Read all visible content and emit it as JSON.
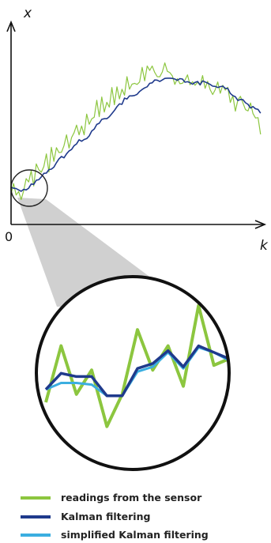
{
  "chart_data": {
    "type": "line",
    "title": "",
    "xlabel": "k",
    "ylabel": "x",
    "origin_label": "0",
    "xlim": [
      0,
      100
    ],
    "ylim": [
      0,
      100
    ],
    "grid": false,
    "legend_placement": "bottom",
    "x": [
      0,
      1,
      2,
      3,
      4,
      5,
      6,
      7,
      8,
      9,
      10,
      11,
      12,
      13,
      14,
      15,
      16,
      17,
      18,
      19,
      20,
      21,
      22,
      23,
      24,
      25,
      26,
      27,
      28,
      29,
      30,
      31,
      32,
      33,
      34,
      35,
      36,
      37,
      38,
      39,
      40,
      41,
      42,
      43,
      44,
      45,
      46,
      47,
      48,
      49,
      50,
      51,
      52,
      53,
      54,
      55,
      56,
      57,
      58,
      59,
      60,
      61,
      62,
      63,
      64,
      65,
      66,
      67,
      68,
      69,
      70,
      71,
      72,
      73,
      74,
      75,
      76,
      77,
      78,
      79,
      80,
      81,
      82,
      83,
      84,
      85,
      86,
      87,
      88,
      89,
      90,
      91,
      92,
      93,
      94,
      95,
      96,
      97,
      98,
      99
    ],
    "series": [
      {
        "name": "readings from the sensor",
        "color": "#8CC63F",
        "values": [
          13.7,
          18.5,
          13.3,
          14.9,
          11.3,
          15.3,
          20.7,
          19.2,
          24.3,
          17.4,
          27.4,
          24.7,
          23.6,
          26.2,
          31.9,
          23.7,
          34.9,
          28.5,
          34.7,
          32.5,
          32.6,
          35.6,
          40.5,
          34.5,
          39.3,
          41.5,
          44.9,
          40.5,
          44.5,
          40.5,
          49.9,
          45.3,
          47.7,
          48.5,
          56.1,
          48.7,
          57.6,
          50.8,
          55.2,
          53.0,
          61.9,
          54.1,
          62.2,
          56.7,
          61.1,
          58.4,
          66.8,
          61.1,
          63.4,
          63.8,
          63.3,
          64.4,
          71.0,
          64.9,
          71.6,
          69.6,
          71.6,
          68.7,
          66.8,
          66.7,
          68.9,
          73.0,
          69.2,
          68.6,
          67.1,
          63.3,
          65.9,
          63.6,
          63.8,
          65.2,
          67.6,
          63.1,
          64.5,
          62.9,
          64.3,
          62.9,
          67.3,
          61.5,
          64.7,
          60.9,
          58.7,
          60.9,
          64.4,
          59.3,
          62.9,
          60.7,
          62.0,
          55.1,
          58.1,
          51.2,
          56.3,
          57.9,
          54.9,
          51.9,
          51.3,
          54.9,
          50.1,
          48.1,
          48.3,
          40.7
        ]
      },
      {
        "name": "Kalman filtering",
        "color": "#1F3A8C",
        "values": [
          16.8,
          16.4,
          16.2,
          15.6,
          15.0,
          15.9,
          15.6,
          16.4,
          18.3,
          18.1,
          20.0,
          20.2,
          21.5,
          23.1,
          23.2,
          24.8,
          25.0,
          25.9,
          27.9,
          29.6,
          30.7,
          30.1,
          31.9,
          33.2,
          33.9,
          35.6,
          36.4,
          38.3,
          37.6,
          38.4,
          38.8,
          40.0,
          42.2,
          43.1,
          45.2,
          45.7,
          47.5,
          47.8,
          47.8,
          48.7,
          50.1,
          51.5,
          53.2,
          54.5,
          54.3,
          57.1,
          56.7,
          58.1,
          58.1,
          58.3,
          58.8,
          60.1,
          61.0,
          61.7,
          62.2,
          63.8,
          64.0,
          65.3,
          65.2,
          64.6,
          65.3,
          66.0,
          66.1,
          66.1,
          66.0,
          65.7,
          65.1,
          65.9,
          65.7,
          64.3,
          64.5,
          64.1,
          63.4,
          64.2,
          64.6,
          63.1,
          64.9,
          64.4,
          63.9,
          63.3,
          62.5,
          62.4,
          61.9,
          62.3,
          62.5,
          61.5,
          61.5,
          59.2,
          58.2,
          57.7,
          56.0,
          56.5,
          56.4,
          55.0,
          54.3,
          52.6,
          53.3,
          52.3,
          52.0,
          50.3
        ]
      }
    ],
    "zoom_series": [
      {
        "name": "readings from the sensor",
        "color": "#8CC63F",
        "x": [
          0,
          1,
          2,
          3,
          4,
          5,
          6,
          7,
          8,
          9,
          10,
          11,
          12
        ],
        "values": [
          25,
          60,
          30,
          45,
          10,
          30,
          70,
          45,
          60,
          35,
          85,
          48,
          52
        ]
      },
      {
        "name": "Kalman filtering",
        "color": "#1F3A8C",
        "x": [
          0,
          1,
          2,
          3,
          4,
          5,
          6,
          7,
          8,
          9,
          10,
          11,
          12
        ],
        "values": [
          33,
          43,
          41,
          41,
          29,
          29,
          46,
          49,
          57,
          47,
          60,
          56,
          52
        ]
      },
      {
        "name": "simplified Kalman filtering",
        "color": "#3BAEE0",
        "x": [
          0,
          1,
          2,
          3,
          4,
          5,
          6,
          7,
          8,
          9,
          10,
          11,
          12
        ],
        "values": [
          33,
          37,
          37,
          36,
          29,
          29,
          44,
          47,
          56,
          46,
          59,
          56,
          51
        ]
      }
    ]
  }
}
